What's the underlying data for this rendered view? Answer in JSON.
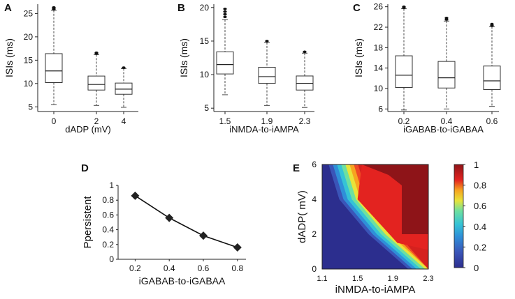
{
  "chart_data": [
    {
      "panel_label": "A",
      "type": "box",
      "xlabel": "dADP (mV)",
      "ylabel": "ISIs (ms)",
      "ylim": [
        4,
        27
      ],
      "yticks": [
        "5",
        "10",
        "15",
        "20",
        "25"
      ],
      "categories": [
        "0",
        "2",
        "4"
      ],
      "boxes": [
        {
          "min": 5.5,
          "q1": 10.2,
          "median": 12.7,
          "q3": 16.4,
          "max": 25.7,
          "outliers": [
            25.9,
            26.1,
            26.3
          ]
        },
        {
          "min": 5.3,
          "q1": 8.6,
          "median": 9.8,
          "q3": 11.6,
          "max": 16.2,
          "outliers": [
            16.4,
            16.6
          ]
        },
        {
          "min": 4.9,
          "q1": 7.7,
          "median": 8.8,
          "q3": 10.1,
          "max": 13.2,
          "outliers": [
            13.4
          ]
        }
      ]
    },
    {
      "panel_label": "B",
      "type": "box",
      "xlabel": "iNMDA-to-iAMPA",
      "ylabel": "ISIs (ms)",
      "ylim": [
        4.5,
        20.5
      ],
      "yticks": [
        "5",
        "10",
        "15",
        "20"
      ],
      "categories": [
        "1.5",
        "1.9",
        "2.3"
      ],
      "boxes": [
        {
          "min": 7.0,
          "q1": 10.1,
          "median": 11.5,
          "q3": 13.4,
          "max": 18.2,
          "outliers": [
            18.6,
            19.0,
            19.4,
            19.8
          ]
        },
        {
          "min": 5.4,
          "q1": 8.7,
          "median": 9.7,
          "q3": 11.1,
          "max": 14.8,
          "outliers": [
            15.0
          ]
        },
        {
          "min": 5.1,
          "q1": 7.7,
          "median": 8.7,
          "q3": 9.8,
          "max": 13.2,
          "outliers": [
            13.4
          ]
        }
      ]
    },
    {
      "panel_label": "C",
      "type": "box",
      "xlabel": "iGABAB-to-iGABAA",
      "ylabel": "ISIs (ms)",
      "ylim": [
        5.5,
        26.5
      ],
      "yticks": [
        "6",
        "10",
        "14",
        "18",
        "22",
        "26"
      ],
      "categories": [
        "0.2",
        "0.4",
        "0.6"
      ],
      "boxes": [
        {
          "min": 5.8,
          "q1": 10.2,
          "median": 12.6,
          "q3": 16.4,
          "max": 25.6,
          "outliers": [
            25.8,
            26.0
          ]
        },
        {
          "min": 6.0,
          "q1": 10.1,
          "median": 12.1,
          "q3": 15.3,
          "max": 23.2,
          "outliers": [
            23.5,
            23.8
          ]
        },
        {
          "min": 6.5,
          "q1": 9.8,
          "median": 11.5,
          "q3": 14.4,
          "max": 22.1,
          "outliers": [
            22.3,
            22.6
          ]
        }
      ]
    },
    {
      "panel_label": "D",
      "type": "line",
      "xlabel": "iGABAB-to-iGABAA",
      "ylabel": "Ppersistent",
      "x": [
        0.2,
        0.4,
        0.6,
        0.8
      ],
      "y": [
        0.86,
        0.56,
        0.32,
        0.16
      ],
      "xlim": [
        0.1,
        0.85
      ],
      "ylim": [
        0,
        1
      ],
      "xticks": [
        "0.2",
        "0.4",
        "0.6",
        "0.8"
      ],
      "yticks": [
        "0",
        "0.2",
        "0.4",
        "0.6",
        "0.8",
        "1"
      ]
    },
    {
      "panel_label": "E",
      "type": "heatmap",
      "xlabel": "iNMDA-to-iAMPA",
      "ylabel": "dADP( mV)",
      "xlim": [
        1.1,
        2.3
      ],
      "ylim": [
        0,
        6
      ],
      "xticks": [
        "1.1",
        "1.5",
        "1.9",
        "2.3"
      ],
      "yticks": [
        "0",
        "2",
        "4",
        "6"
      ],
      "colorbar_range": [
        0,
        1
      ],
      "colorbar_ticks": [
        "0",
        "0.2",
        "0.4",
        "0.6",
        "0.8",
        "1"
      ],
      "transition_front": [
        {
          "y": 0,
          "x": 2.2
        },
        {
          "y": 2,
          "x": 1.75
        },
        {
          "y": 4,
          "x": 1.42
        },
        {
          "y": 6,
          "x": 1.3
        }
      ],
      "top_region": {
        "level": 1.0,
        "x_from": 1.55,
        "x_at_y2": 2.0,
        "y_from": 2,
        "diagonal_to": {
          "x": 2.0,
          "y": 6
        }
      },
      "saturated_region": {
        "level": 0.85,
        "label": "0.8-0.9 band"
      }
    }
  ]
}
